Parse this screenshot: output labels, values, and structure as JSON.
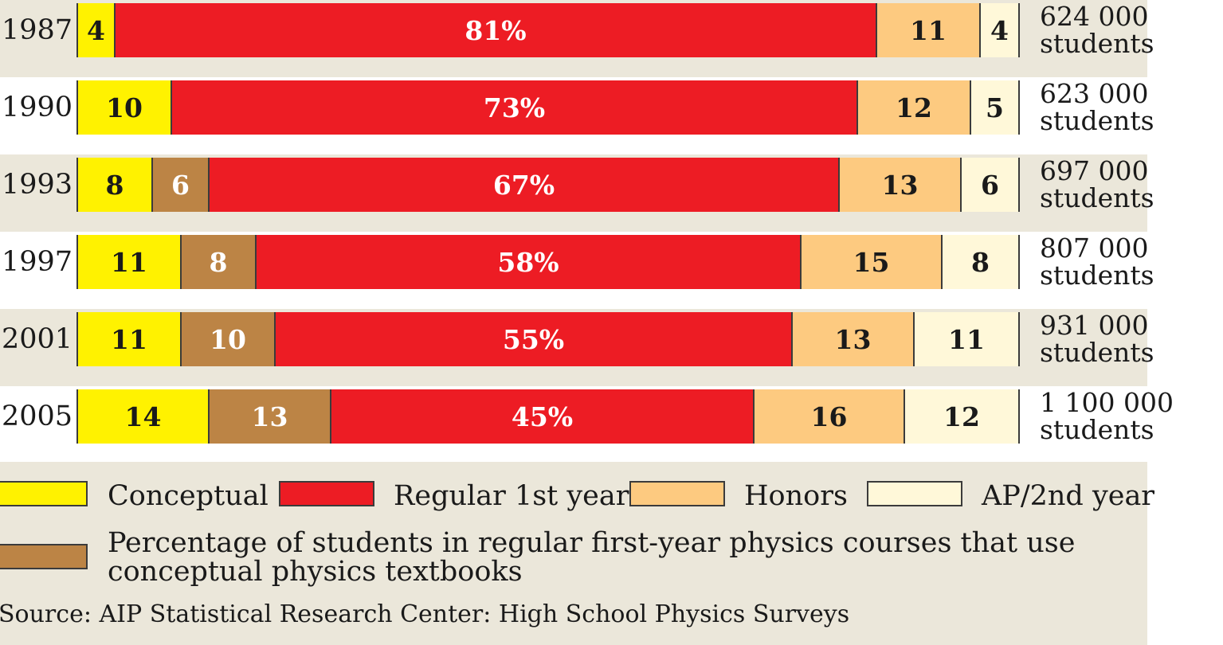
{
  "colors": {
    "conceptual": "#fff200",
    "conceptual_textbooks": "#bc8445",
    "regular": "#ed1c24",
    "honors": "#fdca80",
    "ap": "#fff8d9",
    "band": "#ebe7da",
    "outline": "#3b3b3b"
  },
  "chart_data": {
    "type": "bar",
    "orientation": "horizontal",
    "stacked": true,
    "categories": [
      "1987",
      "1990",
      "1993",
      "1997",
      "2001",
      "2005"
    ],
    "series": [
      {
        "name": "Conceptual",
        "key": "conceptual",
        "values": [
          4,
          10,
          8,
          11,
          11,
          14
        ],
        "labels": [
          "4",
          "10",
          "8",
          "11",
          "11",
          "14"
        ]
      },
      {
        "name": "Percentage of students in regular first-year physics courses that use conceptual physics textbooks",
        "key": "conceptual_textbooks",
        "values": [
          0,
          0,
          6,
          8,
          10,
          13
        ],
        "labels": [
          "",
          "",
          "6",
          "8",
          "10",
          "13"
        ]
      },
      {
        "name": "Regular 1st year",
        "key": "regular",
        "values": [
          81,
          73,
          67,
          58,
          55,
          45
        ],
        "labels": [
          "81%",
          "73%",
          "67%",
          "58%",
          "55%",
          "45%"
        ]
      },
      {
        "name": "Honors",
        "key": "honors",
        "values": [
          11,
          12,
          13,
          15,
          13,
          16
        ],
        "labels": [
          "11",
          "12",
          "13",
          "15",
          "13",
          "16"
        ]
      },
      {
        "name": "AP/2nd year",
        "key": "ap",
        "values": [
          4,
          5,
          6,
          8,
          11,
          12
        ],
        "labels": [
          "4",
          "5",
          "6",
          "8",
          "11",
          "12"
        ]
      }
    ],
    "totals": [
      {
        "number": "624 000",
        "unit": "students"
      },
      {
        "number": "623 000",
        "unit": "students"
      },
      {
        "number": "697 000",
        "unit": "students"
      },
      {
        "number": "807 000",
        "unit": "students"
      },
      {
        "number": "931 000",
        "unit": "students"
      },
      {
        "number": "1 100 000",
        "unit": "students"
      }
    ],
    "xlim": [
      0,
      100
    ],
    "grid": false,
    "legend_position": "bottom"
  },
  "legend": {
    "conceptual": "Conceptual",
    "regular": "Regular 1st year",
    "honors": "Honors",
    "ap": "AP/2nd year",
    "conceptual_textbooks": "Percentage of students in regular first-year physics courses that use conceptual physics textbooks"
  },
  "source": "Source: AIP Statistical Research Center: High School Physics Surveys"
}
